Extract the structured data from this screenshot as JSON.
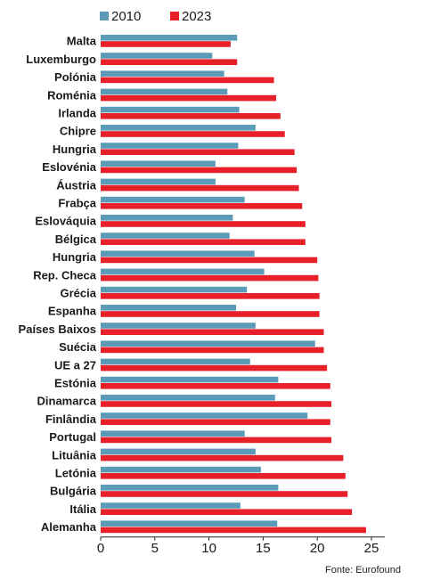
{
  "chart_data": {
    "type": "bar",
    "orientation": "horizontal",
    "categories": [
      "Malta",
      "Luxemburgo",
      "Polónia",
      "Roménia",
      "Irlanda",
      "Chipre",
      "Hungria",
      "Eslovénia",
      "Áustria",
      "Frabça",
      "Eslováquia",
      "Bélgica",
      "Hungria",
      "Rep. Checa",
      "Grécia",
      "Espanha",
      "Países Baixos",
      "Suécia",
      "UE a 27",
      "Estónia",
      "Dinamarca",
      "Finlândia",
      "Portugal",
      "Lituânia",
      "Letónia",
      "Bulgária",
      "Itália",
      "Alemanha"
    ],
    "series": [
      {
        "name": "2010",
        "color": "#5b9bb8",
        "values": [
          12.6,
          10.3,
          11.4,
          11.7,
          12.8,
          14.3,
          12.7,
          10.6,
          10.6,
          13.3,
          12.2,
          11.9,
          14.2,
          15.1,
          13.5,
          12.5,
          14.3,
          19.8,
          13.8,
          16.4,
          16.1,
          19.1,
          13.3,
          14.3,
          14.8,
          16.4,
          12.9,
          16.3
        ]
      },
      {
        "name": "2023",
        "color": "#e8202a",
        "values": [
          12.0,
          12.6,
          16.0,
          16.2,
          16.6,
          17.0,
          17.9,
          18.1,
          18.3,
          18.6,
          18.9,
          18.9,
          20.0,
          20.1,
          20.2,
          20.2,
          20.6,
          20.6,
          20.9,
          21.2,
          21.3,
          21.2,
          21.3,
          22.4,
          22.6,
          22.8,
          23.2,
          24.5
        ]
      }
    ],
    "xlim": [
      0,
      25
    ],
    "xticks": [
      "0",
      "5",
      "10",
      "15",
      "20",
      "25"
    ],
    "legend_position": "top-left",
    "grid": false
  },
  "source": "Fonte: Eurofound"
}
